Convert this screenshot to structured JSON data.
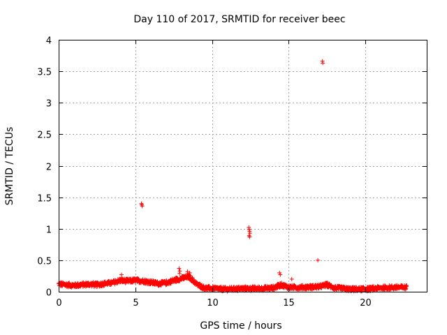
{
  "chart_data": {
    "type": "scatter",
    "title": "Day 110 of 2017, SRMTID for receiver beec",
    "xlabel": "GPS time / hours",
    "ylabel": "SRMTID / TECUs",
    "xlim": [
      0,
      24
    ],
    "ylim": [
      0,
      4
    ],
    "xticks": [
      0,
      5,
      10,
      15,
      20
    ],
    "yticks": [
      0,
      0.5,
      1,
      1.5,
      2,
      2.5,
      3,
      3.5,
      4
    ],
    "xtick_labels": [
      "0",
      "5",
      "10",
      "15",
      "20"
    ],
    "ytick_labels": [
      "0",
      "0.5",
      "1",
      "1.5",
      "2",
      "2.5",
      "3",
      "3.5",
      "4"
    ],
    "grid": true,
    "marker": "plus",
    "color": "#ff0000",
    "outliers": [
      {
        "x": 5.4,
        "y": 1.4
      },
      {
        "x": 5.42,
        "y": 1.38
      },
      {
        "x": 5.45,
        "y": 1.36
      },
      {
        "x": 12.4,
        "y": 1.02
      },
      {
        "x": 12.42,
        "y": 0.99
      },
      {
        "x": 12.45,
        "y": 0.96
      },
      {
        "x": 12.47,
        "y": 0.93
      },
      {
        "x": 12.42,
        "y": 0.89
      },
      {
        "x": 12.45,
        "y": 0.87
      },
      {
        "x": 16.9,
        "y": 0.5
      },
      {
        "x": 17.2,
        "y": 3.66
      },
      {
        "x": 17.22,
        "y": 3.63
      },
      {
        "x": 7.85,
        "y": 0.37
      },
      {
        "x": 7.9,
        "y": 0.33
      },
      {
        "x": 7.88,
        "y": 0.29
      },
      {
        "x": 8.4,
        "y": 0.32
      },
      {
        "x": 8.55,
        "y": 0.3
      },
      {
        "x": 14.4,
        "y": 0.3
      },
      {
        "x": 14.45,
        "y": 0.27
      },
      {
        "x": 15.2,
        "y": 0.2
      },
      {
        "x": 4.1,
        "y": 0.27
      }
    ],
    "baseline": [
      [
        0.0,
        0.12
      ],
      [
        0.5,
        0.11
      ],
      [
        1.0,
        0.1
      ],
      [
        1.5,
        0.11
      ],
      [
        2.0,
        0.12
      ],
      [
        2.5,
        0.11
      ],
      [
        3.0,
        0.13
      ],
      [
        3.5,
        0.14
      ],
      [
        4.0,
        0.18
      ],
      [
        4.5,
        0.17
      ],
      [
        5.0,
        0.18
      ],
      [
        5.5,
        0.17
      ],
      [
        6.0,
        0.15
      ],
      [
        6.5,
        0.13
      ],
      [
        7.0,
        0.14
      ],
      [
        7.5,
        0.18
      ],
      [
        8.0,
        0.21
      ],
      [
        8.5,
        0.24
      ],
      [
        9.0,
        0.12
      ],
      [
        9.5,
        0.06
      ],
      [
        10.0,
        0.05
      ],
      [
        11.0,
        0.04
      ],
      [
        12.0,
        0.05
      ],
      [
        13.0,
        0.05
      ],
      [
        14.0,
        0.06
      ],
      [
        14.5,
        0.11
      ],
      [
        15.0,
        0.07
      ],
      [
        16.0,
        0.07
      ],
      [
        17.0,
        0.08
      ],
      [
        17.5,
        0.11
      ],
      [
        18.0,
        0.06
      ],
      [
        19.0,
        0.04
      ],
      [
        20.0,
        0.04
      ],
      [
        21.0,
        0.06
      ],
      [
        22.0,
        0.07
      ],
      [
        22.7,
        0.07
      ]
    ]
  }
}
